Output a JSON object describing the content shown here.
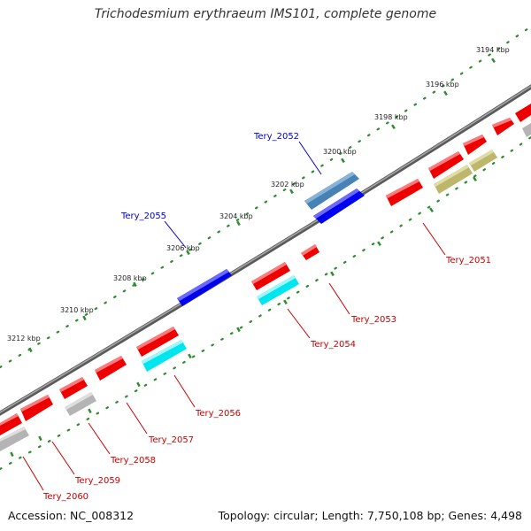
{
  "title": "Trichodesmium erythraeum IMS101, complete genome",
  "footer": {
    "accession": "Accession: NC_008312",
    "summary": "Topology: circular; Length: 7,750,108 bp; Genes: 4,498"
  },
  "colors": {
    "backbone": "#808080",
    "tick_dots": "#2e8b2e",
    "forward_label": "#0000cc",
    "reverse_label": "#cc0000",
    "ruler_text": "#222222"
  },
  "ruler_labels": [
    "3194 kbp",
    "3196 kbp",
    "3198 kbp",
    "3200 kbp",
    "3202 kbp",
    "3204 kbp",
    "3206 kbp",
    "3208 kbp",
    "3210 kbp",
    "3212 kbp"
  ],
  "forward_genes": [
    {
      "id": "Tery_2052",
      "color": "#4682b4"
    },
    {
      "id": "Tery_2055",
      "color": "#0000ee"
    }
  ],
  "reverse_genes": [
    {
      "id": "Tery_2051",
      "color": "#ee0000"
    },
    {
      "id": "Tery_2053",
      "color": "#ee0000"
    },
    {
      "id": "Tery_2054",
      "color": "#00e5ee"
    },
    {
      "id": "Tery_2056",
      "color": "#ee0000"
    },
    {
      "id": "Tery_2057",
      "color": "#ee0000"
    },
    {
      "id": "Tery_2058",
      "color": "#ee0000"
    },
    {
      "id": "Tery_2059",
      "color": "#ee0000"
    },
    {
      "id": "Tery_2060",
      "color": "#ee0000"
    }
  ],
  "unlabeled_feature_colors": {
    "red": "#ee0000",
    "grey": "#b4b4b4",
    "olive": "#bdb76b",
    "blue": "#0000ee"
  }
}
